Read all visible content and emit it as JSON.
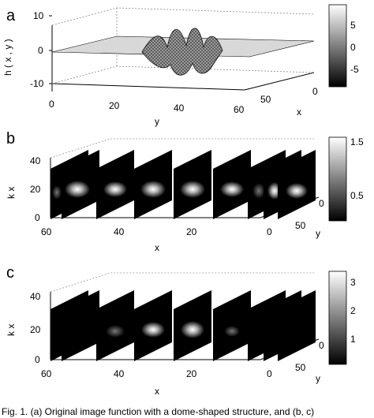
{
  "panels": {
    "a": {
      "letter": "a",
      "zlabel": "h ( x , y )",
      "xlabel": "x",
      "ylabel": "y",
      "ticks_z": [
        "10",
        "0",
        "-10"
      ],
      "ticks_y": [
        "0",
        "20",
        "40",
        "60"
      ],
      "ticks_x": [
        "50",
        "0"
      ],
      "colorbar_ticks": [
        "5",
        "0",
        "-5"
      ]
    },
    "b": {
      "letter": "b",
      "zlabel": "k x",
      "xlabel": "x",
      "ylabel": "y",
      "ticks_z": [
        "40",
        "20",
        "0"
      ],
      "ticks_x": [
        "60",
        "40",
        "20",
        "0"
      ],
      "ticks_y": [
        "0",
        "50"
      ],
      "colorbar_ticks": [
        "1.5",
        "0.5"
      ]
    },
    "c": {
      "letter": "c",
      "zlabel": "k x",
      "xlabel": "x",
      "ylabel": "y",
      "ticks_z": [
        "40",
        "20",
        "0"
      ],
      "ticks_x": [
        "60",
        "40",
        "20",
        "0"
      ],
      "ticks_y": [
        "0",
        "50"
      ],
      "colorbar_ticks": [
        "3",
        "2",
        "1"
      ]
    }
  },
  "caption": "Fig. 1. (a) Original image function with a dome-shaped structure, and (b, c)"
}
